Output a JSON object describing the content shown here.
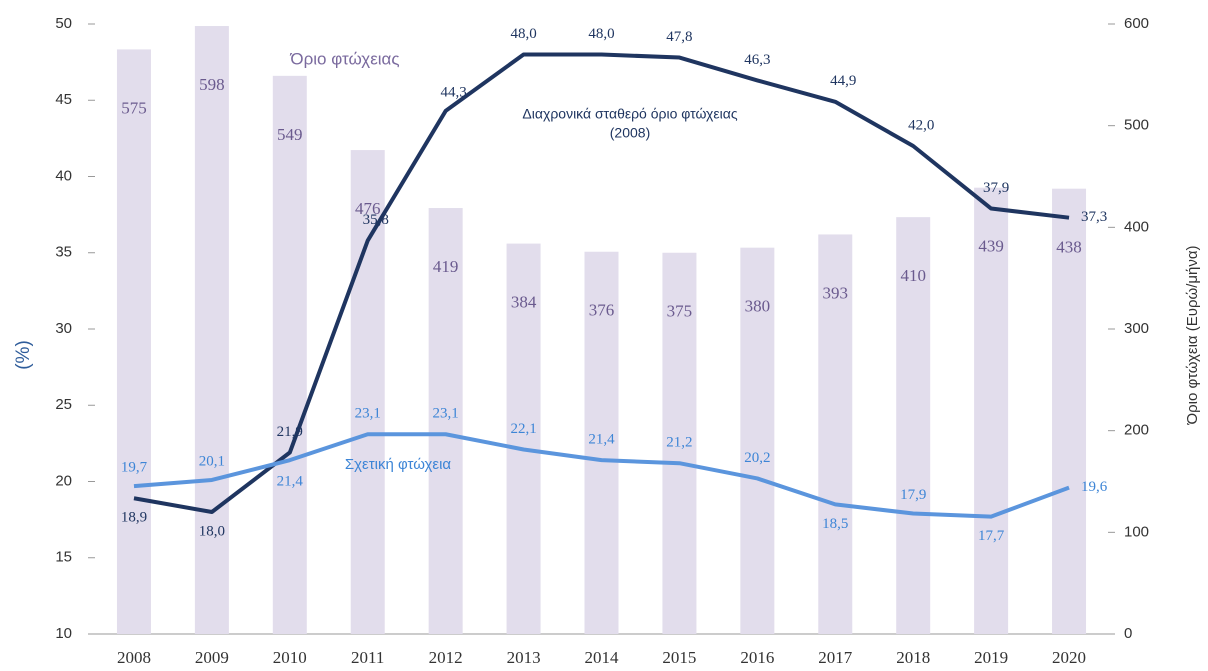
{
  "chart_data": {
    "type": "combo",
    "categories": [
      "2008",
      "2009",
      "2010",
      "2011",
      "2012",
      "2013",
      "2014",
      "2015",
      "2016",
      "2017",
      "2018",
      "2019",
      "2020"
    ],
    "series": [
      {
        "name": "Όριο φτώχειας",
        "type": "bar",
        "axis": "y2",
        "color": "#e2ddec",
        "label_color": "#6a5a8e",
        "values": [
          575,
          598,
          549,
          476,
          419,
          384,
          376,
          375,
          380,
          393,
          410,
          439,
          438
        ]
      },
      {
        "name": "Διαχρονικά σταθερό όριο φτώχειας (2008)",
        "type": "line",
        "color": "#1f3560",
        "label_color": "#1f3560",
        "values": [
          18.9,
          18.0,
          21.9,
          35.8,
          44.3,
          48.0,
          48.0,
          47.8,
          46.3,
          44.9,
          42.0,
          37.9,
          37.3
        ],
        "value_labels": [
          "18,9",
          "18,0",
          "21,9",
          "35,8",
          "44,3",
          "48,0",
          "48,0",
          "47,8",
          "46,3",
          "44,9",
          "42,0",
          "37,9",
          "37,3"
        ]
      },
      {
        "name": "Σχετική φτώχεια",
        "type": "line",
        "color": "#5b95dd",
        "label_color": "#3d85d6",
        "values": [
          19.7,
          20.1,
          21.4,
          23.1,
          23.1,
          22.1,
          21.4,
          21.2,
          20.2,
          18.5,
          17.9,
          17.7,
          19.6
        ],
        "value_labels": [
          "19,7",
          "20,1",
          "21,4",
          "23,1",
          "23,1",
          "22,1",
          "21,4",
          "21,2",
          "20,2",
          "18,5",
          "17,9",
          "17,7",
          "19,6"
        ]
      }
    ],
    "annotations": [
      "Όριο φτώχειας",
      "Διαχρονικά σταθερό όριο φτώχειας",
      "(2008)",
      "Σχετική φτώχεια"
    ],
    "y_label": "(%)",
    "y2_label": "Όριο φτώχεια (Ευρώ/μήνα)",
    "ylim": [
      10,
      50
    ],
    "yticks": [
      10,
      15,
      20,
      25,
      30,
      35,
      40,
      45,
      50
    ],
    "y2lim": [
      0,
      600
    ],
    "y2ticks": [
      0,
      100,
      200,
      300,
      400,
      500,
      600
    ]
  }
}
